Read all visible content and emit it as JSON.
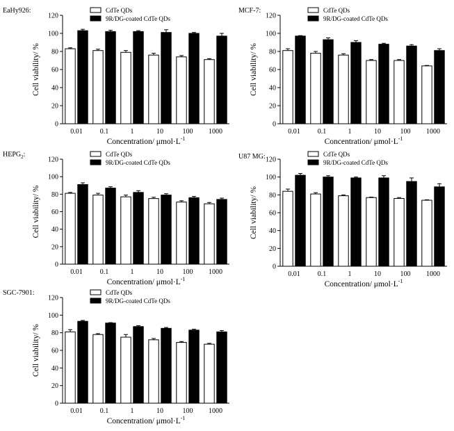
{
  "legend": {
    "series_a": "CdTe QDs",
    "series_b": "9R/DG-coated CdTe QDs"
  },
  "colors": {
    "series_a": "#ffffff",
    "series_b": "#000000",
    "axis": "#000000"
  },
  "chart_data": [
    {
      "type": "bar",
      "title": "EaHy926:",
      "categories": [
        "0.01",
        "0.1",
        "1",
        "10",
        "100",
        "1000"
      ],
      "xlabel": "Concentration/ μmol·L",
      "xlabel_sup": "-1",
      "ylabel": "Cell viability/ %",
      "ylim": [
        0,
        120
      ],
      "yticks": [
        0,
        20,
        40,
        60,
        80,
        100,
        120
      ],
      "legend_position": "top-center",
      "series": [
        {
          "name": "CdTe QDs",
          "values": [
            83,
            81,
            79,
            76,
            74,
            71
          ],
          "errors": [
            1,
            1.5,
            2,
            2,
            1.5,
            1
          ]
        },
        {
          "name": "9R/DG-coated CdTe QDs",
          "values": [
            103,
            102,
            102,
            101,
            100,
            97
          ],
          "errors": [
            1.5,
            1.5,
            1,
            3,
            1,
            3
          ]
        }
      ]
    },
    {
      "type": "bar",
      "title": "MCF-7:",
      "categories": [
        "0.01",
        "0.1",
        "1",
        "10",
        "100",
        "1000"
      ],
      "xlabel": "Concentration/ μmol·L",
      "xlabel_sup": "-1",
      "ylabel": "Cell viability/ %",
      "ylim": [
        0,
        120
      ],
      "yticks": [
        0,
        20,
        40,
        60,
        80,
        100,
        120
      ],
      "legend_position": "top-center",
      "series": [
        {
          "name": "CdTe QDs",
          "values": [
            81,
            78,
            76,
            70,
            70,
            64
          ],
          "errors": [
            2,
            2,
            1.5,
            1,
            1,
            0.5
          ]
        },
        {
          "name": "9R/DG-coated CdTe QDs",
          "values": [
            97,
            93,
            90,
            88,
            86,
            81
          ],
          "errors": [
            0.5,
            2,
            2,
            1,
            1.5,
            2
          ]
        }
      ]
    },
    {
      "type": "bar",
      "title": "HEPG",
      "title_sub": "2",
      "title_tail": ":",
      "categories": [
        "0.01",
        "0.1",
        "1",
        "10",
        "100",
        "1000"
      ],
      "xlabel": "Concentration/ μmol·L",
      "xlabel_sup": "-1",
      "ylabel": "Cell viability/ %",
      "ylim": [
        0,
        120
      ],
      "yticks": [
        0,
        20,
        40,
        60,
        80,
        100,
        120
      ],
      "legend_position": "top-center",
      "series": [
        {
          "name": "CdTe QDs",
          "values": [
            81,
            79,
            77,
            75,
            71,
            69
          ],
          "errors": [
            1,
            2,
            2,
            1.5,
            1.5,
            1.5
          ]
        },
        {
          "name": "9R/DG-coated CdTe QDs",
          "values": [
            91,
            87,
            82,
            79,
            76,
            74
          ],
          "errors": [
            2,
            1.5,
            2,
            1.5,
            1.5,
            1.5
          ]
        }
      ]
    },
    {
      "type": "bar",
      "title": "U87 MG:",
      "categories": [
        "0.01",
        "0.1",
        "1",
        "10",
        "100",
        "1000"
      ],
      "xlabel": "Concentration/ μmol·L",
      "xlabel_sup": "-1",
      "ylabel": "Cell viability/ %",
      "ylim": [
        0,
        120
      ],
      "yticks": [
        0,
        20,
        40,
        60,
        80,
        100,
        120
      ],
      "legend_position": "top-center",
      "series": [
        {
          "name": "CdTe QDs",
          "values": [
            84,
            81,
            79,
            77,
            76,
            74
          ],
          "errors": [
            2.5,
            1.5,
            1,
            0.5,
            1,
            0.5
          ]
        },
        {
          "name": "9R/DG-coated CdTe QDs",
          "values": [
            102,
            100,
            99,
            99,
            95,
            89
          ],
          "errors": [
            2,
            1.5,
            1,
            2.5,
            4,
            3.5
          ]
        }
      ]
    },
    {
      "type": "bar",
      "title": "SGC-7901:",
      "categories": [
        "0.01",
        "0.1",
        "1",
        "10",
        "100",
        "1000"
      ],
      "xlabel": "Concentration/ μmol·L",
      "xlabel_sup": "-1",
      "ylabel": "Cell viability/ %",
      "ylim": [
        0,
        120
      ],
      "yticks": [
        0,
        20,
        40,
        60,
        80,
        100,
        120
      ],
      "legend_position": "top-center",
      "series": [
        {
          "name": "CdTe QDs",
          "values": [
            81,
            78,
            75,
            72,
            69,
            67
          ],
          "errors": [
            2.5,
            1,
            3,
            1.5,
            1,
            1
          ]
        },
        {
          "name": "9R/DG-coated CdTe QDs",
          "values": [
            93,
            91,
            87,
            85,
            83,
            81
          ],
          "errors": [
            1,
            0.5,
            1,
            1,
            1,
            1.5
          ]
        }
      ]
    }
  ]
}
